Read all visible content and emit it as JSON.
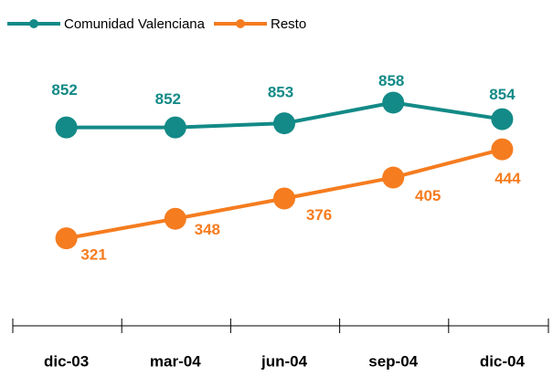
{
  "chart_data": {
    "type": "line",
    "categories": [
      "dic-03",
      "mar-04",
      "jun-04",
      "sep-04",
      "dic-04"
    ],
    "series": [
      {
        "name": "Comunidad Valenciana",
        "color": "#138a87",
        "values": [
          852,
          852,
          853,
          858,
          854
        ]
      },
      {
        "name": "Resto",
        "color": "#f57c1f",
        "values": [
          321,
          348,
          376,
          405,
          444
        ],
        "axis": "y2"
      }
    ],
    "ylim": [
      804,
      874
    ],
    "y2lim": [
      200,
      600
    ],
    "legend": "top-left",
    "grid": false
  }
}
